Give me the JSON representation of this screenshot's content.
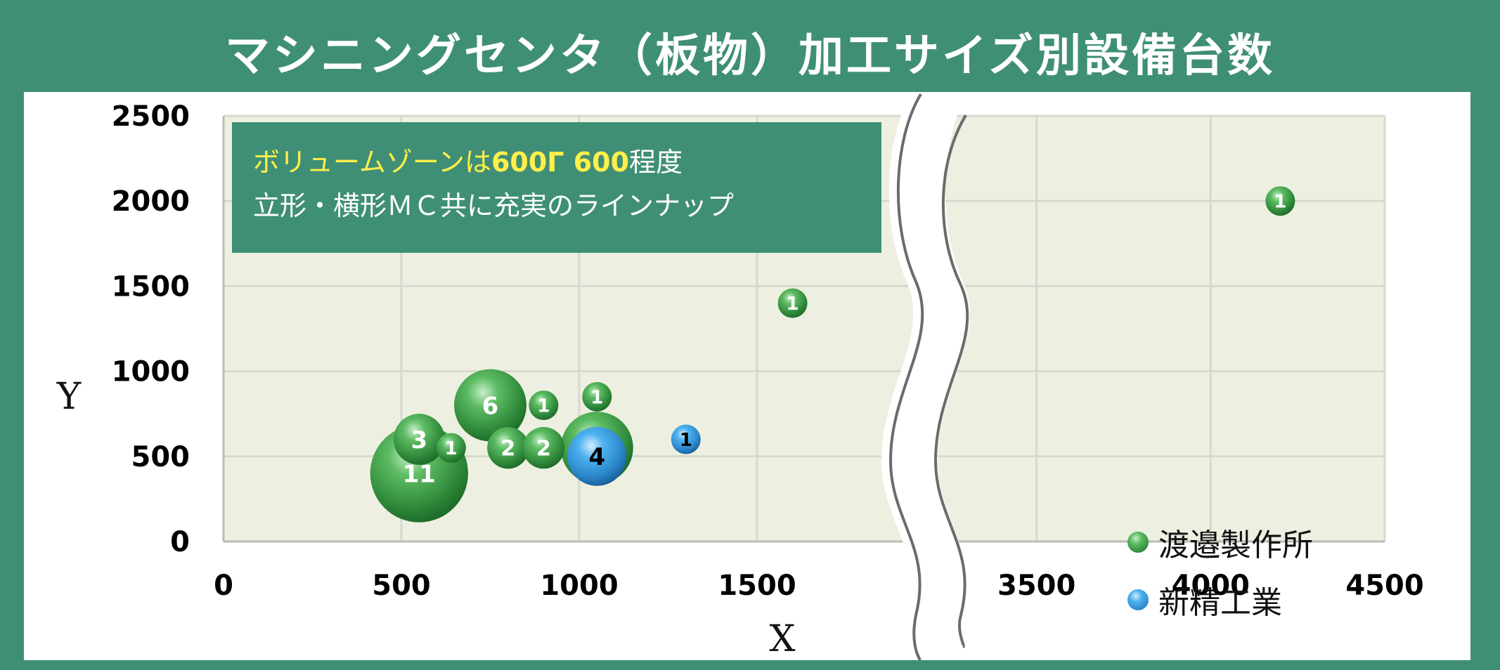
{
  "title": "マシニングセンタ（板物）加工サイズ別設備台数",
  "note": {
    "line1_a": "ボリュームゾーンは",
    "line1_b": "600Г 600",
    "line1_c": "程度",
    "line2": "立形・横形ＭＣ共に充実のラインナップ"
  },
  "colors": {
    "background": "#3f8f76",
    "plot_area": "#edf0e0",
    "grid": "#d6d9d0",
    "series_green": "#3f9a4a",
    "series_blue": "#3a9ad8",
    "note_highlight": "#ffef4a"
  },
  "chart_data": {
    "type": "scatter",
    "variant": "bubble",
    "title": "マシニングセンタ（板物）加工サイズ別設備台数",
    "xlabel": "X",
    "ylabel": "Y",
    "xlim": [
      0,
      4500
    ],
    "ylim": [
      0,
      2500
    ],
    "x_axis_break": {
      "from": 2000,
      "to": 3000
    },
    "x_ticks": [
      "0",
      "500",
      "1000",
      "1500",
      "3500",
      "4000",
      "4500"
    ],
    "y_ticks": [
      "0",
      "500",
      "1000",
      "1500",
      "2000",
      "2500"
    ],
    "grid": true,
    "legend_position": "bottom-right",
    "series": [
      {
        "name": "渡邉製作所",
        "color": "#3f9a4a",
        "points": [
          {
            "x": 550,
            "y": 400,
            "count": 11
          },
          {
            "x": 550,
            "y": 600,
            "count": 3
          },
          {
            "x": 640,
            "y": 550,
            "count": 1
          },
          {
            "x": 750,
            "y": 800,
            "count": 6
          },
          {
            "x": 800,
            "y": 550,
            "count": 2
          },
          {
            "x": 900,
            "y": 550,
            "count": 2
          },
          {
            "x": 900,
            "y": 800,
            "count": 1
          },
          {
            "x": 1050,
            "y": 850,
            "count": 1
          },
          {
            "x": 1050,
            "y": 550,
            "count": 6
          },
          {
            "x": 1600,
            "y": 1400,
            "count": 1
          },
          {
            "x": 4200,
            "y": 2000,
            "count": 1
          }
        ]
      },
      {
        "name": "新精工業",
        "color": "#3a9ad8",
        "points": [
          {
            "x": 1050,
            "y": 500,
            "count": 4
          },
          {
            "x": 1300,
            "y": 600,
            "count": 1
          }
        ]
      }
    ]
  }
}
